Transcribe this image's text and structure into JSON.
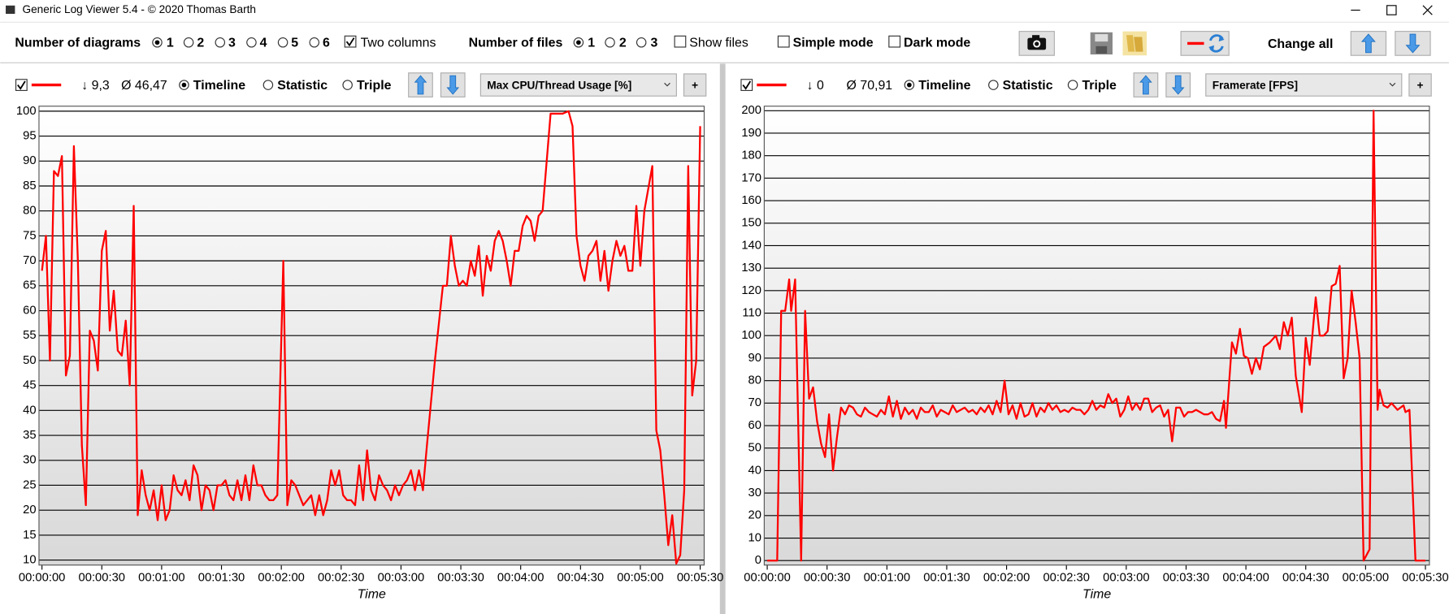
{
  "window": {
    "title": "Generic Log Viewer 5.4 - © 2020 Thomas Barth"
  },
  "toolbar": {
    "diagrams_label": "Number of diagrams",
    "diagram_options": [
      "1",
      "2",
      "3",
      "4",
      "5",
      "6"
    ],
    "two_columns": "Two columns",
    "files_label": "Number of files",
    "file_options": [
      "1",
      "2",
      "3"
    ],
    "show_files": "Show files",
    "simple_mode": "Simple mode",
    "dark_mode": "Dark mode",
    "change_all": "Change all"
  },
  "chart_data": [
    {
      "type": "line",
      "x_label": "Time",
      "panel": {
        "stat_min": "↓ 9,3",
        "stat_mean": "Ø 46,47",
        "modes": [
          "Timeline",
          "Statistic",
          "Triple"
        ],
        "add_button": "+"
      },
      "x": [
        0,
        2,
        4,
        6,
        8,
        10,
        12,
        14,
        16,
        18,
        20,
        22,
        24,
        26,
        28,
        30,
        32,
        34,
        36,
        38,
        40,
        42,
        44,
        46,
        48,
        50,
        52,
        54,
        56,
        58,
        60,
        62,
        64,
        66,
        68,
        70,
        72,
        74,
        76,
        78,
        80,
        82,
        84,
        86,
        88,
        90,
        92,
        94,
        96,
        98,
        100,
        102,
        104,
        106,
        108,
        110,
        112,
        114,
        116,
        118,
        121,
        123,
        125,
        127,
        129,
        131,
        133,
        135,
        137,
        139,
        141,
        143,
        145,
        147,
        149,
        151,
        153,
        155,
        157,
        159,
        161,
        163,
        165,
        167,
        169,
        171,
        173,
        175,
        177,
        179,
        181,
        183,
        185,
        187,
        189,
        191,
        193,
        197,
        201,
        203,
        205,
        207,
        209,
        211,
        213,
        215,
        217,
        219,
        221,
        223,
        225,
        227,
        229,
        231,
        233,
        235,
        237,
        239,
        241,
        243,
        245,
        247,
        249,
        251,
        255,
        258,
        261,
        264,
        266,
        268,
        270,
        272,
        274,
        276,
        278,
        280,
        282,
        284,
        286,
        288,
        290,
        292,
        294,
        296,
        298,
        300,
        302,
        306,
        308,
        310,
        312,
        314,
        316,
        318,
        320,
        322,
        324,
        326,
        328,
        330
      ],
      "series": [
        {
          "name": "Max CPU/Thread Usage [%]",
          "color": "#ff0000",
          "values": [
            68,
            75,
            50,
            88,
            87,
            91,
            47,
            51,
            93,
            70,
            33,
            21,
            56,
            54,
            48,
            72,
            76,
            56,
            64,
            52,
            51,
            58,
            45,
            81,
            19,
            28,
            23,
            20,
            24,
            18,
            25,
            18,
            20,
            27,
            24,
            23,
            26,
            22,
            29,
            27,
            20,
            25,
            24,
            20,
            25,
            25,
            26,
            23,
            22,
            26,
            22,
            27,
            22,
            29,
            25,
            25,
            23,
            22,
            22,
            23,
            70,
            21,
            26,
            25,
            23,
            21,
            22,
            23,
            19,
            23,
            19,
            22,
            28,
            25,
            28,
            23,
            22,
            22,
            21,
            29,
            22,
            32,
            24,
            22,
            27,
            25,
            24,
            22,
            25,
            23,
            25,
            26,
            28,
            24,
            28,
            24,
            33,
            50,
            65,
            65,
            75,
            69,
            65,
            66,
            65,
            70,
            67,
            73,
            63,
            71,
            68,
            74,
            76,
            74,
            70,
            65,
            72,
            72,
            77,
            79,
            78,
            74,
            79,
            80,
            99.5,
            99.5,
            99.5,
            100,
            97,
            75,
            69,
            66,
            71,
            72,
            74,
            66,
            72,
            64,
            70,
            74,
            71,
            73,
            68,
            68,
            81,
            69,
            80,
            89,
            36,
            32,
            23,
            13,
            19,
            9.3,
            11,
            24,
            89,
            43,
            50,
            97
          ]
        }
      ],
      "xlim": [
        -1.5,
        332
      ],
      "xticks": [
        {
          "value": 0,
          "label": "00:00:00"
        },
        {
          "value": 30,
          "label": "00:00:30"
        },
        {
          "value": 60,
          "label": "00:01:00"
        },
        {
          "value": 90,
          "label": "00:01:30"
        },
        {
          "value": 120,
          "label": "00:02:00"
        },
        {
          "value": 150,
          "label": "00:02:30"
        },
        {
          "value": 180,
          "label": "00:03:00"
        },
        {
          "value": 210,
          "label": "00:03:30"
        },
        {
          "value": 240,
          "label": "00:04:00"
        },
        {
          "value": 270,
          "label": "00:04:30"
        },
        {
          "value": 300,
          "label": "00:05:00"
        },
        {
          "value": 330,
          "label": "00:05:30"
        }
      ],
      "ylim": [
        9,
        101
      ],
      "yticks": [
        10,
        15,
        20,
        25,
        30,
        35,
        40,
        45,
        50,
        55,
        60,
        65,
        70,
        75,
        80,
        85,
        90,
        95,
        100
      ],
      "grid": true
    },
    {
      "type": "line",
      "x_label": "Time",
      "panel": {
        "stat_min": "↓ 0",
        "stat_mean": "Ø 70,91",
        "modes": [
          "Timeline",
          "Statistic",
          "Triple"
        ],
        "add_button": "+"
      },
      "x": [
        0,
        5,
        7,
        9,
        11,
        12,
        14,
        17,
        19,
        21,
        23,
        25,
        27,
        29,
        31,
        33,
        35,
        37,
        39,
        41,
        43,
        45,
        47,
        49,
        51,
        53,
        55,
        57,
        59,
        61,
        63,
        65,
        67,
        69,
        71,
        73,
        75,
        77,
        79,
        81,
        83,
        85,
        87,
        89,
        91,
        93,
        95,
        97,
        99,
        101,
        103,
        105,
        107,
        109,
        111,
        113,
        115,
        117,
        119,
        121,
        123,
        125,
        127,
        129,
        131,
        133,
        135,
        137,
        139,
        141,
        143,
        145,
        147,
        149,
        151,
        153,
        155,
        157,
        159,
        161,
        163,
        165,
        167,
        169,
        171,
        173,
        175,
        177,
        179,
        181,
        183,
        185,
        187,
        189,
        191,
        193,
        195,
        197,
        199,
        201,
        203,
        205,
        207,
        209,
        211,
        213,
        215,
        217,
        219,
        221,
        223,
        225,
        227,
        229,
        230,
        233,
        235,
        237,
        239,
        241,
        243,
        245,
        247,
        249,
        252,
        255,
        257,
        259,
        261,
        263,
        265,
        268,
        270,
        272,
        275,
        277,
        279,
        281,
        283,
        285,
        287,
        289,
        291,
        293,
        295,
        297,
        299,
        302,
        304,
        306,
        307,
        309,
        311,
        313,
        316,
        319,
        320,
        322,
        325,
        330
      ],
      "series": [
        {
          "name": "Framerate [FPS]",
          "color": "#ff0000",
          "values": [
            0,
            0,
            111,
            111,
            125,
            111,
            125,
            0,
            111,
            72,
            77,
            62,
            52,
            46,
            65,
            40,
            55,
            68,
            65,
            69,
            68,
            65,
            64,
            68,
            66,
            65,
            64,
            67,
            65,
            73,
            64,
            71,
            63,
            68,
            65,
            67,
            63,
            68,
            66,
            66,
            69,
            64,
            67,
            66,
            65,
            69,
            66,
            67,
            68,
            66,
            67,
            65,
            68,
            66,
            69,
            65,
            71,
            66,
            80,
            65,
            69,
            63,
            70,
            64,
            65,
            70,
            64,
            68,
            66,
            70,
            67,
            69,
            66,
            67,
            66,
            68,
            67,
            67,
            65,
            67,
            71,
            67,
            69,
            68,
            74,
            70,
            72,
            64,
            67,
            73,
            67,
            70,
            67,
            72,
            72,
            66,
            68,
            69,
            64,
            67,
            53,
            68,
            68,
            64,
            66,
            66,
            67,
            66,
            65,
            65,
            66,
            63,
            62,
            71,
            59,
            97,
            92,
            103,
            91,
            90,
            83,
            90,
            85,
            95,
            97,
            100,
            94,
            106,
            100,
            108,
            82,
            66,
            99,
            87,
            117,
            100,
            100,
            102,
            122,
            123,
            131,
            81,
            90,
            120,
            106,
            90,
            0,
            5,
            200,
            67,
            76,
            69,
            68,
            70,
            67,
            69,
            66,
            67,
            0,
            0
          ]
        }
      ],
      "xlim": [
        -1.5,
        332
      ],
      "xticks": [
        {
          "value": 0,
          "label": "00:00:00"
        },
        {
          "value": 30,
          "label": "00:00:30"
        },
        {
          "value": 60,
          "label": "00:01:00"
        },
        {
          "value": 90,
          "label": "00:01:30"
        },
        {
          "value": 120,
          "label": "00:02:00"
        },
        {
          "value": 150,
          "label": "00:02:30"
        },
        {
          "value": 180,
          "label": "00:03:00"
        },
        {
          "value": 210,
          "label": "00:03:30"
        },
        {
          "value": 240,
          "label": "00:04:00"
        },
        {
          "value": 270,
          "label": "00:04:30"
        },
        {
          "value": 300,
          "label": "00:05:00"
        },
        {
          "value": 330,
          "label": "00:05:30"
        }
      ],
      "ylim": [
        -2,
        202
      ],
      "yticks": [
        0,
        10,
        20,
        30,
        40,
        50,
        60,
        70,
        80,
        90,
        100,
        110,
        120,
        130,
        140,
        150,
        160,
        170,
        180,
        190,
        200
      ],
      "grid": true
    }
  ]
}
